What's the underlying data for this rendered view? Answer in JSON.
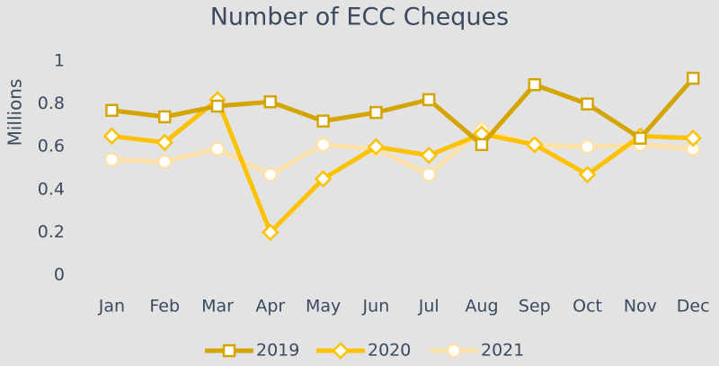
{
  "chart_data": {
    "type": "line",
    "title": "Number of ECC Cheques",
    "y_label": "Millions",
    "categories": [
      "Jan",
      "Feb",
      "Mar",
      "Apr",
      "May",
      "Jun",
      "Jul",
      "Aug",
      "Sep",
      "Oct",
      "Nov",
      "Dec"
    ],
    "series": [
      {
        "name": "2019",
        "color": "#d4a500",
        "marker": "square",
        "values": [
          0.77,
          0.74,
          0.79,
          0.81,
          0.72,
          0.76,
          0.82,
          0.61,
          0.89,
          0.8,
          0.64,
          0.92
        ]
      },
      {
        "name": "2020",
        "color": "#fcc200",
        "marker": "diamond",
        "values": [
          0.65,
          0.62,
          0.82,
          0.2,
          0.45,
          0.6,
          0.56,
          0.66,
          0.61,
          0.47,
          0.65,
          0.64
        ]
      },
      {
        "name": "2021",
        "color": "#fde1a8",
        "marker": "circle",
        "values": [
          0.54,
          0.53,
          0.59,
          0.47,
          0.61,
          0.59,
          0.47,
          0.68,
          0.61,
          0.6,
          0.61,
          0.59
        ]
      }
    ],
    "ylim": [
      0,
      1
    ],
    "yticks": [
      0,
      0.2,
      0.4,
      0.6,
      0.8,
      1
    ],
    "grid": false,
    "legend": "bottom"
  }
}
